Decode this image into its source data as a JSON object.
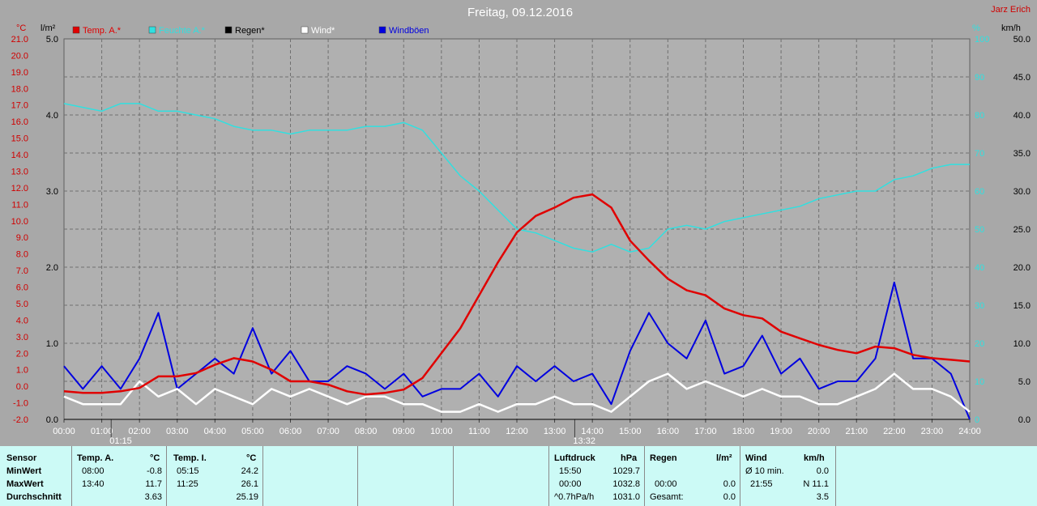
{
  "title": "Freitag, 09.12.2016",
  "author": "Jarz Erich",
  "colors": {
    "temp": "#e00000",
    "humidity": "#30e0e0",
    "rain": "#000000",
    "wind": "#ffffff",
    "gust": "#0000e0",
    "background": "#a8a8a8",
    "plot_bg": "#b0b0b0"
  },
  "axes": {
    "temp_unit": "°C",
    "rain_unit": "l/m²",
    "humidity_unit": "%",
    "wind_unit": "km/h",
    "temp_ticks": [
      "21.0",
      "20.0",
      "19.0",
      "18.0",
      "17.0",
      "16.0",
      "15.0",
      "14.0",
      "13.0",
      "12.0",
      "11.0",
      "10.0",
      "9.0",
      "8.0",
      "7.0",
      "6.0",
      "5.0",
      "4.0",
      "3.0",
      "2.0",
      "1.0",
      "0.0",
      "-1.0",
      "-2.0"
    ],
    "rain_ticks": [
      "5.0",
      "4.0",
      "3.0",
      "2.0",
      "1.0",
      "0.0"
    ],
    "humidity_ticks": [
      "100",
      "90",
      "80",
      "70",
      "60",
      "50",
      "40",
      "30",
      "20",
      "10",
      "0"
    ],
    "wind_ticks": [
      "50.0",
      "45.0",
      "40.0",
      "35.0",
      "30.0",
      "25.0",
      "20.0",
      "15.0",
      "10.0",
      "5.0",
      "0.0"
    ],
    "time_ticks": [
      "00:00",
      "01:00",
      "02:00",
      "03:00",
      "04:00",
      "05:00",
      "06:00",
      "07:00",
      "08:00",
      "09:00",
      "10:00",
      "11:00",
      "12:00",
      "13:00",
      "14:00",
      "15:00",
      "16:00",
      "17:00",
      "18:00",
      "19:00",
      "20:00",
      "21:00",
      "22:00",
      "23:00",
      "24:00"
    ],
    "markers": [
      "01:15",
      "13:32"
    ]
  },
  "chart_data": {
    "type": "line",
    "title": "Freitag, 09.12.2016",
    "x_unit": "hours",
    "temp_range": [
      -2,
      21
    ],
    "rain_range": [
      0,
      5
    ],
    "humidity_range": [
      0,
      100
    ],
    "wind_range": [
      0,
      50
    ],
    "series": [
      {
        "name": "Temp. A.*",
        "axis": "temp",
        "x": [
          0,
          0.5,
          1,
          1.5,
          2,
          2.5,
          3,
          3.5,
          4,
          4.5,
          5,
          5.5,
          6,
          6.5,
          7,
          7.5,
          8,
          8.5,
          9,
          9.5,
          10,
          10.5,
          11,
          11.5,
          12,
          12.5,
          13,
          13.5,
          14,
          14.5,
          15,
          15.5,
          16,
          16.5,
          17,
          17.5,
          18,
          18.5,
          19,
          19.5,
          20,
          20.5,
          21,
          21.5,
          22,
          22.5,
          23,
          23.5,
          24
        ],
        "values": [
          -0.3,
          -0.4,
          -0.4,
          -0.3,
          -0.1,
          0.6,
          0.6,
          0.8,
          1.3,
          1.7,
          1.5,
          1.0,
          0.3,
          0.3,
          0.1,
          -0.3,
          -0.5,
          -0.4,
          -0.2,
          0.5,
          2.0,
          3.5,
          5.5,
          7.5,
          9.3,
          10.3,
          10.8,
          11.4,
          11.6,
          10.8,
          8.8,
          7.6,
          6.5,
          5.8,
          5.5,
          4.7,
          4.3,
          4.1,
          3.3,
          2.9,
          2.5,
          2.2,
          2.0,
          2.4,
          2.3,
          1.9,
          1.7,
          1.6,
          1.5
        ]
      },
      {
        "name": "Feuchte A.*",
        "axis": "humidity",
        "x": [
          0,
          0.5,
          1,
          1.5,
          2,
          2.5,
          3,
          3.5,
          4,
          4.5,
          5,
          5.5,
          6,
          6.5,
          7,
          7.5,
          8,
          8.5,
          9,
          9.5,
          10,
          10.5,
          11,
          11.5,
          12,
          12.5,
          13,
          13.5,
          14,
          14.5,
          15,
          15.5,
          16,
          16.5,
          17,
          17.5,
          18,
          18.5,
          19,
          19.5,
          20,
          20.5,
          21,
          21.5,
          22,
          22.5,
          23,
          23.5,
          24
        ],
        "values": [
          83,
          82,
          81,
          83,
          83,
          81,
          81,
          80,
          79,
          77,
          76,
          76,
          75,
          76,
          76,
          76,
          77,
          77,
          78,
          76,
          70,
          64,
          60,
          55,
          50,
          49,
          47,
          45,
          44,
          46,
          44,
          45,
          50,
          51,
          50,
          52,
          53,
          54,
          55,
          56,
          58,
          59,
          60,
          60,
          63,
          64,
          66,
          67,
          67
        ]
      },
      {
        "name": "Regen*",
        "axis": "rain",
        "x": [
          0,
          24
        ],
        "values": [
          0,
          0
        ]
      },
      {
        "name": "Wind*",
        "axis": "wind",
        "x": [
          0,
          0.5,
          1,
          1.5,
          2,
          2.5,
          3,
          3.5,
          4,
          4.5,
          5,
          5.5,
          6,
          6.5,
          7,
          7.5,
          8,
          8.5,
          9,
          9.5,
          10,
          10.5,
          11,
          11.5,
          12,
          12.5,
          13,
          13.5,
          14,
          14.5,
          15,
          15.5,
          16,
          16.5,
          17,
          17.5,
          18,
          18.5,
          19,
          19.5,
          20,
          20.5,
          21,
          21.5,
          22,
          22.5,
          23,
          23.5,
          24
        ],
        "values": [
          3,
          2,
          2,
          2,
          5,
          3,
          4,
          2,
          4,
          3,
          2,
          4,
          3,
          4,
          3,
          2,
          3,
          3,
          2,
          2,
          1,
          1,
          2,
          1,
          2,
          2,
          3,
          2,
          2,
          1,
          3,
          5,
          6,
          4,
          5,
          4,
          3,
          4,
          3,
          3,
          2,
          2,
          3,
          4,
          6,
          4,
          4,
          3,
          1
        ]
      },
      {
        "name": "Windböen",
        "axis": "wind",
        "x": [
          0,
          0.5,
          1,
          1.5,
          2,
          2.5,
          3,
          3.5,
          4,
          4.5,
          5,
          5.5,
          6,
          6.5,
          7,
          7.5,
          8,
          8.5,
          9,
          9.5,
          10,
          10.5,
          11,
          11.5,
          12,
          12.5,
          13,
          13.5,
          14,
          14.5,
          15,
          15.5,
          16,
          16.5,
          17,
          17.5,
          18,
          18.5,
          19,
          19.5,
          20,
          20.5,
          21,
          21.5,
          22,
          22.5,
          23,
          23.5,
          24
        ],
        "values": [
          7,
          4,
          7,
          4,
          8,
          14,
          4,
          6,
          8,
          6,
          12,
          6,
          9,
          5,
          5,
          7,
          6,
          4,
          6,
          3,
          4,
          4,
          6,
          3,
          7,
          5,
          7,
          5,
          6,
          2,
          9,
          14,
          10,
          8,
          13,
          6,
          7,
          11,
          6,
          8,
          4,
          5,
          5,
          8,
          18,
          8,
          8,
          6,
          0
        ]
      }
    ]
  },
  "legend": [
    {
      "label": "Temp. A.*",
      "color": "#e00000"
    },
    {
      "label": "Feuchte A.*",
      "color": "#30e0e0"
    },
    {
      "label": "Regen*",
      "color": "#000000"
    },
    {
      "label": "Wind*",
      "color": "#ffffff"
    },
    {
      "label": "Windböen",
      "color": "#0000e0"
    }
  ],
  "summary": {
    "sensor": {
      "header": "Sensor",
      "min": "MinWert",
      "max": "MaxWert",
      "avg": "Durchschnitt"
    },
    "temp_a": {
      "header": "Temp. A.",
      "unit": "°C",
      "min_time": "08:00",
      "min_val": "-0.8",
      "max_time": "13:40",
      "max_val": "11.7",
      "avg_val": "3.63"
    },
    "temp_i": {
      "header": "Temp. I.",
      "unit": "°C",
      "min_time": "05:15",
      "min_val": "24.2",
      "max_time": "11:25",
      "max_val": "26.1",
      "avg_val": "25.19"
    },
    "pressure": {
      "header": "Luftdruck",
      "unit": "hPa",
      "min_time": "15:50",
      "min_val": "1029.7",
      "max_time": "00:00",
      "max_val": "1032.8",
      "trend_label": "^0.7hPa/h",
      "trend_val": "1031.0"
    },
    "rain": {
      "header": "Regen",
      "unit": "l/m²",
      "max_time": "00:00",
      "max_val": "0.0",
      "total_label": "Gesamt:",
      "total_val": "0.0"
    },
    "wind": {
      "header": "Wind",
      "unit": "km/h",
      "avg_label": "Ø 10 min.",
      "avg_val": "0.0",
      "max_time": "21:55",
      "max_val": "N 11.1",
      "mean_val": "3.5"
    }
  }
}
